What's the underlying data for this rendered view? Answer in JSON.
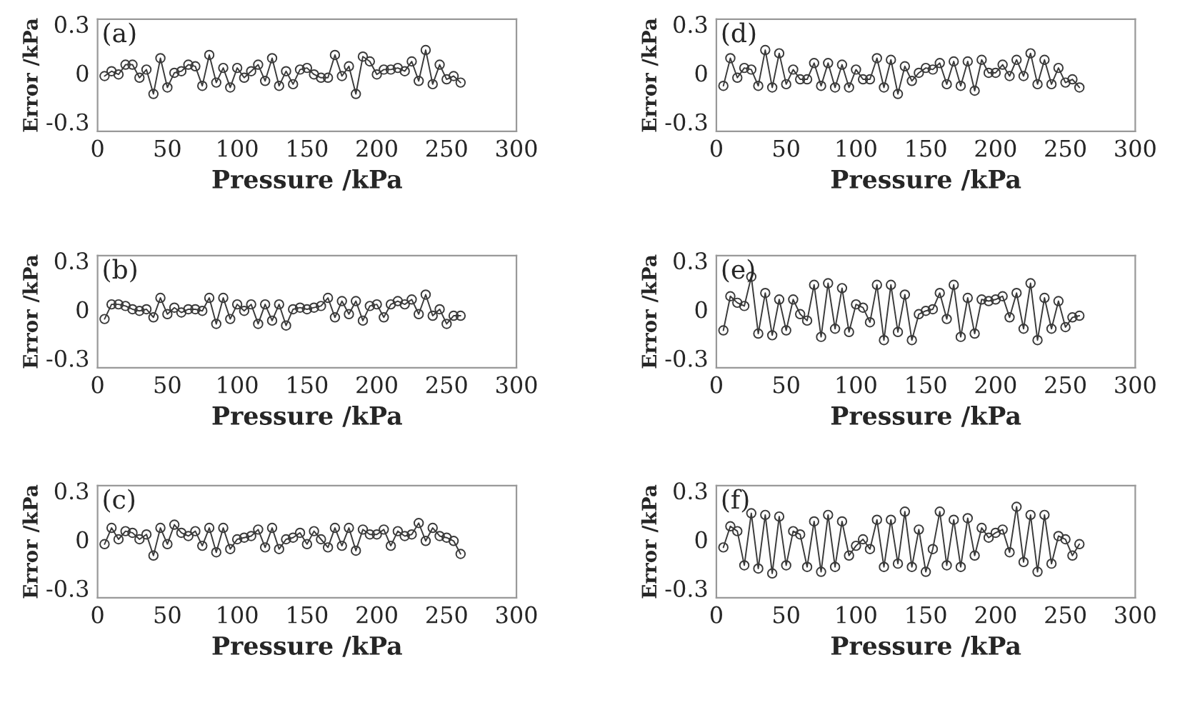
{
  "chart_data": [
    {
      "type": "line",
      "annotations": [
        "(a)"
      ],
      "xlabel": "Pressure /kPa",
      "ylabel": "Error /kPa",
      "xlim": [
        0,
        300
      ],
      "xticks": [
        0,
        50,
        100,
        150,
        200,
        250,
        300
      ],
      "ylim": [
        -0.36,
        0.33
      ],
      "yticks": [
        -0.3,
        0,
        0.3
      ],
      "grid": false,
      "marker": "circle",
      "line_style": "solid",
      "x": [
        5,
        10,
        15,
        20,
        25,
        30,
        35,
        40,
        45,
        50,
        55,
        60,
        65,
        70,
        75,
        80,
        85,
        90,
        95,
        100,
        105,
        110,
        115,
        120,
        125,
        130,
        135,
        140,
        145,
        150,
        155,
        160,
        165,
        170,
        175,
        180,
        185,
        190,
        195,
        200,
        205,
        210,
        215,
        220,
        225,
        230,
        235,
        240,
        245,
        250,
        255,
        260
      ],
      "series": [
        {
          "color": "#3a3a3a",
          "values": [
            -0.02,
            0.01,
            -0.01,
            0.05,
            0.05,
            -0.03,
            0.02,
            -0.13,
            0.09,
            -0.09,
            0.0,
            0.01,
            0.05,
            0.04,
            -0.08,
            0.11,
            -0.06,
            0.03,
            -0.09,
            0.03,
            -0.03,
            0.01,
            0.05,
            -0.05,
            0.09,
            -0.08,
            0.01,
            -0.07,
            0.02,
            0.03,
            -0.01,
            -0.03,
            -0.03,
            0.11,
            -0.02,
            0.04,
            -0.13,
            0.1,
            0.07,
            -0.01,
            0.02,
            0.02,
            0.03,
            0.01,
            0.07,
            -0.05,
            0.14,
            -0.07,
            0.05,
            -0.04,
            -0.02,
            -0.06
          ]
        }
      ]
    },
    {
      "type": "line",
      "annotations": [
        "(b)"
      ],
      "xlabel": "Pressure /kPa",
      "ylabel": "Error /kPa",
      "xlim": [
        0,
        300
      ],
      "xticks": [
        0,
        50,
        100,
        150,
        200,
        250,
        300
      ],
      "ylim": [
        -0.36,
        0.33
      ],
      "yticks": [
        -0.3,
        0,
        0.3
      ],
      "grid": false,
      "marker": "circle",
      "line_style": "solid",
      "x": [
        5,
        10,
        15,
        20,
        25,
        30,
        35,
        40,
        45,
        50,
        55,
        60,
        65,
        70,
        75,
        80,
        85,
        90,
        95,
        100,
        105,
        110,
        115,
        120,
        125,
        130,
        135,
        140,
        145,
        150,
        155,
        160,
        165,
        170,
        175,
        180,
        185,
        190,
        195,
        200,
        205,
        210,
        215,
        220,
        225,
        230,
        235,
        240,
        245,
        250,
        255,
        260
      ],
      "series": [
        {
          "color": "#3a3a3a",
          "values": [
            -0.06,
            0.03,
            0.03,
            0.02,
            0.0,
            -0.01,
            0.0,
            -0.05,
            0.07,
            -0.03,
            0.01,
            -0.02,
            0.0,
            0.0,
            -0.01,
            0.07,
            -0.09,
            0.07,
            -0.06,
            0.03,
            -0.01,
            0.03,
            -0.09,
            0.03,
            -0.07,
            0.03,
            -0.1,
            0.0,
            0.01,
            0.0,
            0.01,
            0.02,
            0.07,
            -0.05,
            0.05,
            -0.03,
            0.05,
            -0.07,
            0.02,
            0.03,
            -0.05,
            0.03,
            0.05,
            0.03,
            0.06,
            -0.03,
            0.09,
            -0.04,
            0.0,
            -0.09,
            -0.04,
            -0.04
          ]
        }
      ]
    },
    {
      "type": "line",
      "annotations": [
        "(c)"
      ],
      "xlabel": "Pressure /kPa",
      "ylabel": "Error /kPa",
      "xlim": [
        0,
        300
      ],
      "xticks": [
        0,
        50,
        100,
        150,
        200,
        250,
        300
      ],
      "ylim": [
        -0.36,
        0.33
      ],
      "yticks": [
        -0.3,
        0,
        0.3
      ],
      "grid": false,
      "marker": "circle",
      "line_style": "solid",
      "x": [
        5,
        10,
        15,
        20,
        25,
        30,
        35,
        40,
        45,
        50,
        55,
        60,
        65,
        70,
        75,
        80,
        85,
        90,
        95,
        100,
        105,
        110,
        115,
        120,
        125,
        130,
        135,
        140,
        145,
        150,
        155,
        160,
        165,
        170,
        175,
        180,
        185,
        190,
        195,
        200,
        205,
        210,
        215,
        220,
        225,
        230,
        235,
        240,
        245,
        250,
        255,
        260
      ],
      "series": [
        {
          "color": "#3a3a3a",
          "values": [
            -0.03,
            0.07,
            0.0,
            0.05,
            0.04,
            0.0,
            0.03,
            -0.1,
            0.07,
            -0.03,
            0.09,
            0.04,
            0.02,
            0.05,
            -0.04,
            0.07,
            -0.08,
            0.07,
            -0.06,
            0.0,
            0.01,
            0.02,
            0.06,
            -0.05,
            0.07,
            -0.06,
            0.0,
            0.01,
            0.04,
            -0.03,
            0.05,
            0.0,
            -0.05,
            0.07,
            -0.04,
            0.07,
            -0.07,
            0.06,
            0.03,
            0.03,
            0.06,
            -0.04,
            0.05,
            0.02,
            0.03,
            0.1,
            -0.01,
            0.07,
            0.02,
            0.01,
            -0.01,
            -0.09
          ]
        }
      ]
    },
    {
      "type": "line",
      "annotations": [
        "(d)"
      ],
      "xlabel": "Pressure /kPa",
      "ylabel": "Error /kPa",
      "xlim": [
        0,
        300
      ],
      "xticks": [
        0,
        50,
        100,
        150,
        200,
        250,
        300
      ],
      "ylim": [
        -0.36,
        0.33
      ],
      "yticks": [
        -0.3,
        0,
        0.3
      ],
      "grid": false,
      "marker": "circle",
      "line_style": "solid",
      "x": [
        5,
        10,
        15,
        20,
        25,
        30,
        35,
        40,
        45,
        50,
        55,
        60,
        65,
        70,
        75,
        80,
        85,
        90,
        95,
        100,
        105,
        110,
        115,
        120,
        125,
        130,
        135,
        140,
        145,
        150,
        155,
        160,
        165,
        170,
        175,
        180,
        185,
        190,
        195,
        200,
        205,
        210,
        215,
        220,
        225,
        230,
        235,
        240,
        245,
        250,
        255,
        260
      ],
      "series": [
        {
          "color": "#3a3a3a",
          "values": [
            -0.08,
            0.09,
            -0.03,
            0.03,
            0.02,
            -0.08,
            0.14,
            -0.09,
            0.12,
            -0.07,
            0.02,
            -0.04,
            -0.04,
            0.06,
            -0.08,
            0.06,
            -0.09,
            0.05,
            -0.09,
            0.02,
            -0.04,
            -0.04,
            0.09,
            -0.09,
            0.08,
            -0.13,
            0.04,
            -0.05,
            0.0,
            0.03,
            0.02,
            0.06,
            -0.07,
            0.07,
            -0.08,
            0.07,
            -0.11,
            0.08,
            0.0,
            0.0,
            0.05,
            -0.02,
            0.08,
            -0.02,
            0.12,
            -0.07,
            0.08,
            -0.07,
            0.03,
            -0.06,
            -0.04,
            -0.09
          ]
        }
      ]
    },
    {
      "type": "line",
      "annotations": [
        "(e)"
      ],
      "xlabel": "Pressure /kPa",
      "ylabel": "Error /kPa",
      "xlim": [
        0,
        300
      ],
      "xticks": [
        0,
        50,
        100,
        150,
        200,
        250,
        300
      ],
      "ylim": [
        -0.36,
        0.33
      ],
      "yticks": [
        -0.3,
        0,
        0.3
      ],
      "grid": false,
      "marker": "circle",
      "line_style": "solid",
      "x": [
        5,
        10,
        15,
        20,
        25,
        30,
        35,
        40,
        45,
        50,
        55,
        60,
        65,
        70,
        75,
        80,
        85,
        90,
        95,
        100,
        105,
        110,
        115,
        120,
        125,
        130,
        135,
        140,
        145,
        150,
        155,
        160,
        165,
        170,
        175,
        180,
        185,
        190,
        195,
        200,
        205,
        210,
        215,
        220,
        225,
        230,
        235,
        240,
        245,
        250,
        255,
        260
      ],
      "series": [
        {
          "color": "#3a3a3a",
          "values": [
            -0.13,
            0.08,
            0.04,
            0.02,
            0.2,
            -0.15,
            0.1,
            -0.16,
            0.06,
            -0.13,
            0.06,
            -0.03,
            -0.07,
            0.15,
            -0.17,
            0.16,
            -0.12,
            0.13,
            -0.14,
            0.03,
            0.01,
            -0.08,
            0.15,
            -0.19,
            0.15,
            -0.14,
            0.09,
            -0.19,
            -0.03,
            -0.01,
            0.0,
            0.1,
            -0.06,
            0.15,
            -0.17,
            0.07,
            -0.15,
            0.06,
            0.05,
            0.06,
            0.08,
            -0.05,
            0.1,
            -0.12,
            0.16,
            -0.19,
            0.07,
            -0.12,
            0.05,
            -0.11,
            -0.05,
            -0.04
          ]
        }
      ]
    },
    {
      "type": "line",
      "annotations": [
        "(f)"
      ],
      "xlabel": "Pressure /kPa",
      "ylabel": "Error /kPa",
      "xlim": [
        0,
        300
      ],
      "xticks": [
        0,
        50,
        100,
        150,
        200,
        250,
        300
      ],
      "ylim": [
        -0.36,
        0.33
      ],
      "yticks": [
        -0.3,
        0,
        0.3
      ],
      "grid": false,
      "marker": "circle",
      "line_style": "solid",
      "x": [
        5,
        10,
        15,
        20,
        25,
        30,
        35,
        40,
        45,
        50,
        55,
        60,
        65,
        70,
        75,
        80,
        85,
        90,
        95,
        100,
        105,
        110,
        115,
        120,
        125,
        130,
        135,
        140,
        145,
        150,
        155,
        160,
        165,
        170,
        175,
        180,
        185,
        190,
        195,
        200,
        205,
        210,
        215,
        220,
        225,
        230,
        235,
        240,
        245,
        250,
        255,
        260
      ],
      "series": [
        {
          "color": "#3a3a3a",
          "values": [
            -0.05,
            0.08,
            0.05,
            -0.16,
            0.16,
            -0.18,
            0.15,
            -0.21,
            0.14,
            -0.16,
            0.05,
            0.03,
            -0.17,
            0.11,
            -0.2,
            0.15,
            -0.17,
            0.11,
            -0.1,
            -0.04,
            0.0,
            -0.06,
            0.12,
            -0.17,
            0.12,
            -0.15,
            0.17,
            -0.17,
            0.06,
            -0.2,
            -0.06,
            0.17,
            -0.16,
            0.12,
            -0.17,
            0.13,
            -0.1,
            0.07,
            0.01,
            0.04,
            0.06,
            -0.08,
            0.2,
            -0.14,
            0.15,
            -0.2,
            0.15,
            -0.15,
            0.02,
            0.0,
            -0.1,
            -0.03
          ]
        }
      ]
    }
  ]
}
